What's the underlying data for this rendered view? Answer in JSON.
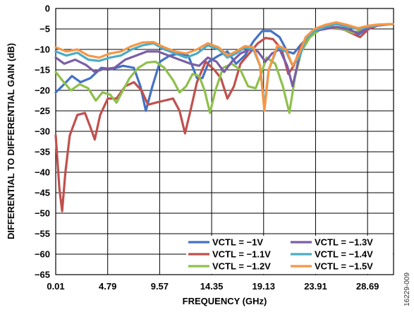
{
  "chart_data": {
    "type": "line",
    "xlabel": "FREQUENCY (GHz)",
    "ylabel": "DIFFERENTIAL TO DIFFERENTIAL GAIN (dB)",
    "xlim": [
      0.01,
      31.08
    ],
    "ylim": [
      -65,
      0
    ],
    "xticks": [
      "0.01",
      "4.79",
      "9.57",
      "14.35",
      "19.13",
      "23.91",
      "28.69"
    ],
    "xtick_values": [
      0.01,
      4.79,
      9.57,
      14.35,
      19.13,
      23.91,
      28.69
    ],
    "yticks": [
      0,
      -5,
      -10,
      -15,
      -20,
      -25,
      -30,
      -35,
      -40,
      -45,
      -50,
      -55,
      -60,
      -65
    ],
    "grid": true,
    "legend_position": "bottom-right",
    "figure_id": "16229-009",
    "series": [
      {
        "name": "VCTL = −1V",
        "color": "#4472c4",
        "points": [
          [
            0.01,
            -20.5
          ],
          [
            0.6,
            -19
          ],
          [
            1.5,
            -16.5
          ],
          [
            2.3,
            -18
          ],
          [
            3.2,
            -17
          ],
          [
            4.2,
            -14.5
          ],
          [
            5.2,
            -14.8
          ],
          [
            6.2,
            -14
          ],
          [
            7.2,
            -14.5
          ],
          [
            7.8,
            -19
          ],
          [
            8.3,
            -25
          ],
          [
            8.9,
            -19
          ],
          [
            9.6,
            -13
          ],
          [
            10.5,
            -11.5
          ],
          [
            11.4,
            -11
          ],
          [
            12.2,
            -11.5
          ],
          [
            13.0,
            -17
          ],
          [
            13.5,
            -17
          ],
          [
            14.1,
            -13
          ],
          [
            15.0,
            -11.5
          ],
          [
            15.8,
            -10.5
          ],
          [
            16.6,
            -13.5
          ],
          [
            17.4,
            -11.5
          ],
          [
            18.2,
            -8
          ],
          [
            19.0,
            -5.5
          ],
          [
            19.8,
            -5.5
          ],
          [
            20.6,
            -7
          ],
          [
            21.3,
            -10.5
          ],
          [
            21.9,
            -11
          ],
          [
            22.5,
            -9
          ],
          [
            23.4,
            -6.5
          ],
          [
            24.2,
            -5
          ],
          [
            25.2,
            -4.5
          ],
          [
            26.2,
            -5
          ],
          [
            27.0,
            -5.5
          ],
          [
            27.8,
            -6.5
          ],
          [
            28.6,
            -5
          ],
          [
            29.5,
            -4.2
          ],
          [
            31.0,
            -3.8
          ]
        ]
      },
      {
        "name": "VCTL = −1.1V",
        "color": "#c0504d",
        "points": [
          [
            0.01,
            -31
          ],
          [
            0.35,
            -44
          ],
          [
            0.6,
            -49.5
          ],
          [
            0.9,
            -40
          ],
          [
            1.3,
            -31
          ],
          [
            2.0,
            -26
          ],
          [
            2.7,
            -25.5
          ],
          [
            3.2,
            -29
          ],
          [
            3.6,
            -32
          ],
          [
            4.1,
            -26
          ],
          [
            4.8,
            -22
          ],
          [
            5.6,
            -22
          ],
          [
            6.4,
            -19
          ],
          [
            7.2,
            -18
          ],
          [
            7.9,
            -20
          ],
          [
            8.5,
            -23.5
          ],
          [
            9.2,
            -23
          ],
          [
            10.0,
            -22.5
          ],
          [
            10.8,
            -22
          ],
          [
            11.4,
            -25
          ],
          [
            11.9,
            -30.5
          ],
          [
            12.4,
            -25
          ],
          [
            13.0,
            -18
          ],
          [
            13.8,
            -13
          ],
          [
            14.6,
            -15
          ],
          [
            15.2,
            -17
          ],
          [
            15.8,
            -22
          ],
          [
            16.4,
            -19
          ],
          [
            17.0,
            -13.5
          ],
          [
            17.8,
            -11
          ],
          [
            18.6,
            -8.5
          ],
          [
            19.3,
            -7.2
          ],
          [
            20.0,
            -7.5
          ],
          [
            20.8,
            -10
          ],
          [
            21.4,
            -16
          ],
          [
            21.9,
            -14
          ],
          [
            22.6,
            -9
          ],
          [
            23.4,
            -6.5
          ],
          [
            24.4,
            -5
          ],
          [
            25.4,
            -4.8
          ],
          [
            26.4,
            -5
          ],
          [
            27.2,
            -6
          ],
          [
            28.0,
            -7
          ],
          [
            28.8,
            -5
          ],
          [
            29.8,
            -4
          ],
          [
            31.0,
            -3.8
          ]
        ]
      },
      {
        "name": "VCTL = −1.2V",
        "color": "#8fc04c",
        "points": [
          [
            0.01,
            -15.5
          ],
          [
            0.6,
            -17.5
          ],
          [
            1.4,
            -20
          ],
          [
            2.2,
            -18.5
          ],
          [
            3.0,
            -19.5
          ],
          [
            3.7,
            -22.5
          ],
          [
            4.3,
            -20.5
          ],
          [
            5.0,
            -21
          ],
          [
            5.6,
            -23
          ],
          [
            6.2,
            -20
          ],
          [
            6.8,
            -17
          ],
          [
            7.6,
            -14.5
          ],
          [
            8.4,
            -13.2
          ],
          [
            9.2,
            -13
          ],
          [
            10.0,
            -14.5
          ],
          [
            10.8,
            -17.5
          ],
          [
            11.4,
            -20.5
          ],
          [
            12.0,
            -19
          ],
          [
            12.6,
            -16
          ],
          [
            13.2,
            -16.5
          ],
          [
            13.7,
            -20
          ],
          [
            14.2,
            -25.5
          ],
          [
            14.7,
            -20
          ],
          [
            15.4,
            -14.5
          ],
          [
            16.2,
            -13.5
          ],
          [
            17.0,
            -15
          ],
          [
            17.7,
            -19
          ],
          [
            18.4,
            -19.5
          ],
          [
            18.9,
            -16
          ],
          [
            19.4,
            -12
          ],
          [
            20.2,
            -13.5
          ],
          [
            20.9,
            -19
          ],
          [
            21.5,
            -25.5
          ],
          [
            22.0,
            -17
          ],
          [
            22.6,
            -10.5
          ],
          [
            23.4,
            -7
          ],
          [
            24.4,
            -5
          ],
          [
            25.4,
            -4.5
          ],
          [
            26.4,
            -5
          ],
          [
            27.4,
            -6
          ],
          [
            28.3,
            -5
          ],
          [
            29.3,
            -4
          ],
          [
            31.0,
            -3.8
          ]
        ]
      },
      {
        "name": "VCTL = −1.3V",
        "color": "#7b5ea7",
        "points": [
          [
            0.01,
            -12
          ],
          [
            0.8,
            -13.5
          ],
          [
            1.8,
            -12.5
          ],
          [
            2.8,
            -13.8
          ],
          [
            3.6,
            -15.5
          ],
          [
            4.4,
            -14.8
          ],
          [
            5.4,
            -14.5
          ],
          [
            6.4,
            -12.5
          ],
          [
            7.4,
            -11.5
          ],
          [
            8.4,
            -10.5
          ],
          [
            9.4,
            -10.5
          ],
          [
            10.4,
            -11.5
          ],
          [
            11.4,
            -12.5
          ],
          [
            12.4,
            -13.5
          ],
          [
            13.2,
            -14
          ],
          [
            14.0,
            -12
          ],
          [
            14.8,
            -13
          ],
          [
            15.5,
            -15.5
          ],
          [
            16.2,
            -13
          ],
          [
            17.0,
            -11
          ],
          [
            17.8,
            -10
          ],
          [
            18.6,
            -10.5
          ],
          [
            19.3,
            -13
          ],
          [
            19.9,
            -11
          ],
          [
            20.6,
            -10
          ],
          [
            21.3,
            -14
          ],
          [
            21.8,
            -19
          ],
          [
            22.3,
            -13
          ],
          [
            23.0,
            -7
          ],
          [
            23.8,
            -5.5
          ],
          [
            24.8,
            -5
          ],
          [
            25.8,
            -4.5
          ],
          [
            26.8,
            -5
          ],
          [
            27.8,
            -6
          ],
          [
            28.6,
            -5
          ],
          [
            29.6,
            -4
          ],
          [
            31.0,
            -3.8
          ]
        ]
      },
      {
        "name": "VCTL = −1.4V",
        "color": "#4bacc6",
        "points": [
          [
            0.01,
            -10.5
          ],
          [
            1.0,
            -11.5
          ],
          [
            2.0,
            -10.8
          ],
          [
            3.0,
            -12.5
          ],
          [
            4.0,
            -12.8
          ],
          [
            5.0,
            -12
          ],
          [
            6.0,
            -11.5
          ],
          [
            7.0,
            -10
          ],
          [
            8.0,
            -9
          ],
          [
            9.0,
            -8.5
          ],
          [
            10.0,
            -10
          ],
          [
            11.0,
            -11
          ],
          [
            12.0,
            -12
          ],
          [
            13.0,
            -11
          ],
          [
            14.0,
            -9
          ],
          [
            15.0,
            -10
          ],
          [
            15.8,
            -12
          ],
          [
            16.6,
            -11
          ],
          [
            17.4,
            -9.5
          ],
          [
            18.2,
            -10
          ],
          [
            18.8,
            -14
          ],
          [
            19.2,
            -24
          ],
          [
            19.6,
            -15
          ],
          [
            20.4,
            -9.5
          ],
          [
            21.2,
            -10.5
          ],
          [
            21.8,
            -14
          ],
          [
            22.4,
            -12
          ],
          [
            23.0,
            -7.5
          ],
          [
            23.8,
            -5.5
          ],
          [
            24.8,
            -4.5
          ],
          [
            25.8,
            -3.8
          ],
          [
            26.8,
            -4.5
          ],
          [
            27.8,
            -5
          ],
          [
            28.8,
            -4.5
          ],
          [
            29.8,
            -4
          ],
          [
            31.0,
            -3.8
          ]
        ]
      },
      {
        "name": "VCTL = −1.5V",
        "color": "#f79646",
        "points": [
          [
            0.01,
            -9.5
          ],
          [
            1.0,
            -10.5
          ],
          [
            2.0,
            -10
          ],
          [
            3.0,
            -11.5
          ],
          [
            4.0,
            -12
          ],
          [
            5.0,
            -11
          ],
          [
            6.0,
            -10.5
          ],
          [
            7.0,
            -9.2
          ],
          [
            8.0,
            -8.3
          ],
          [
            9.0,
            -8.2
          ],
          [
            10.0,
            -9.5
          ],
          [
            11.0,
            -10.5
          ],
          [
            12.0,
            -11
          ],
          [
            13.0,
            -10
          ],
          [
            14.0,
            -8.5
          ],
          [
            15.0,
            -9.5
          ],
          [
            15.8,
            -11.5
          ],
          [
            16.6,
            -10.5
          ],
          [
            17.4,
            -9.2
          ],
          [
            18.2,
            -9.5
          ],
          [
            18.8,
            -14
          ],
          [
            19.2,
            -25
          ],
          [
            19.6,
            -15
          ],
          [
            20.4,
            -9
          ],
          [
            21.2,
            -10
          ],
          [
            21.8,
            -14
          ],
          [
            22.4,
            -11
          ],
          [
            23.0,
            -7
          ],
          [
            23.8,
            -5
          ],
          [
            24.8,
            -4
          ],
          [
            25.8,
            -3.4
          ],
          [
            26.8,
            -4
          ],
          [
            27.8,
            -4.8
          ],
          [
            28.8,
            -4.2
          ],
          [
            29.8,
            -3.9
          ],
          [
            31.0,
            -3.8
          ]
        ]
      }
    ]
  }
}
